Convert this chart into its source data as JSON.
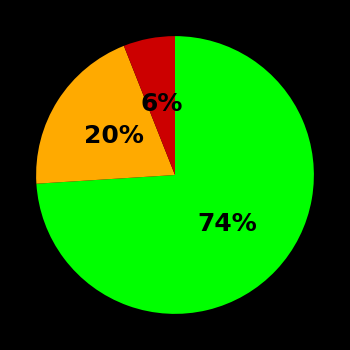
{
  "slices": [
    74,
    20,
    6
  ],
  "colors": [
    "#00ff00",
    "#ffaa00",
    "#cc0000"
  ],
  "labels": [
    "74%",
    "20%",
    "6%"
  ],
  "background_color": "#000000",
  "startangle": 90,
  "figsize": [
    3.5,
    3.5
  ],
  "dpi": 100,
  "label_fontsize": 18,
  "label_fontweight": "bold"
}
